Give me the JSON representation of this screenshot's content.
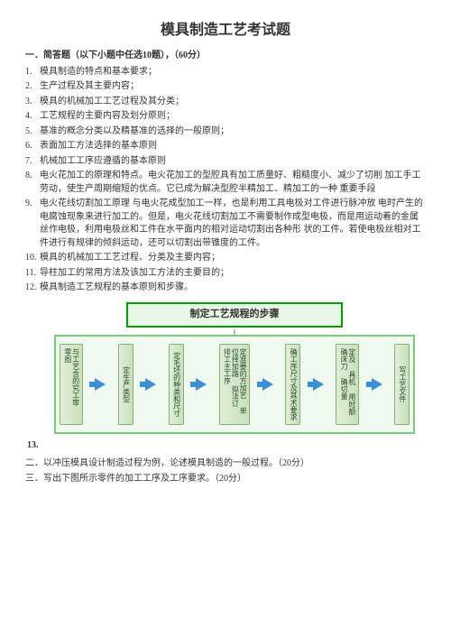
{
  "title": "模具制造工艺考试题",
  "section1": {
    "heading": "一．简答题（以下小题中任选10题），（60分）",
    "items": [
      "模具制造的特点和基本要求；",
      "生产过程及其主要内容；",
      "模具的机械加工工艺过程及其分类；",
      "工艺规程的主要内容及划分原则；",
      "基准的概念分类以及精基准的选择的一般原则；",
      "表面加工方法选择的基本原则",
      "机械加工工序应遵循的基本原则",
      "电火花加工的原理和特点。电火花加工的型腔具有加工质量好、粗糙度小、减少了切削 加工手工劳动，使生产周期缩短的优点。它已成为解决型腔半精加工、精加工的一种 重要手段",
      "电火花线切割加工原理 与电火花成型加工一样，也是利用工具电极对工件进行脉冲放 电时产生的电腐蚀现象来进行加工的。但是，电火花线切割加工不需要制作成型电极，而是用运动着的金属丝作电极，利用电极丝和工件在水平面内的相对运动切割出各种形 状的工件。若使电极丝相对工件进行有规律的倾斜运动，还可以切割出带锥度的工件。",
      "模具的机械加工工艺过程、分类及主要内容；",
      "导柱加工的常用方法及该加工方法的主要目的；",
      "模具制造工艺规程的基本原则和步骤。"
    ]
  },
  "diagram": {
    "title": "制定工艺规程的步骤",
    "steps": [
      "与工艺含的究工审  零图",
      "定生产类型",
      "定毛坯的种类和尺寸",
      "定准要的方加艺  单位择加路  拟法订  排工主工序",
      "确工序尺寸及其术要求",
      "定及  具机  用时额  确床刀  确切量",
      "写工艺文件"
    ]
  },
  "footer": {
    "q13_marker": "13.",
    "q2": "二．以冲压模具设计制造过程为例，论述模具制造的一般过程。（20分）",
    "q3": "三．写出下图所示零件的加工工序及工序要求。（20分）"
  }
}
